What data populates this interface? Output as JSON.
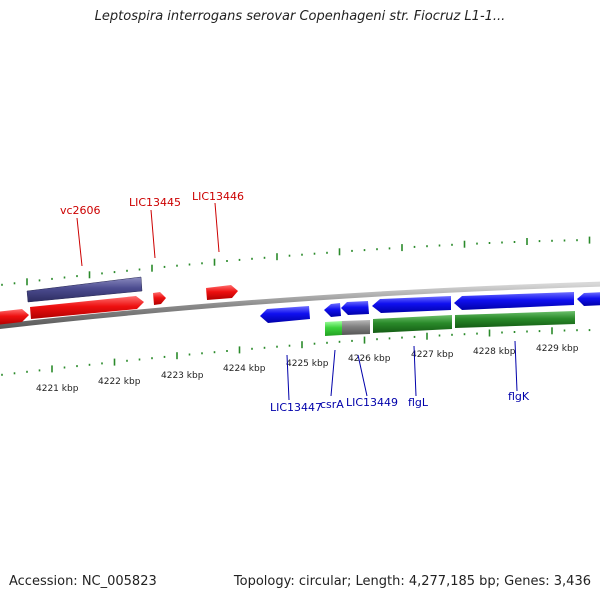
{
  "title": "Leptospira interrogans serovar Copenhageni str. Fiocruz L1-1...",
  "footer": {
    "accession": "Accession: NC_005823",
    "summary": "Topology: circular; Length: 4,277,185 bp; Genes: 3,436"
  },
  "colors": {
    "forward_cds": "#e00000",
    "reverse_cds": "#1010e0",
    "forward_other": "#4a4a8c",
    "reverse_other": "#2a8a2a",
    "backbone": "#808080",
    "ticks": "#2a8a2a",
    "forward_label": "#cc0000",
    "reverse_label": "#0000aa"
  },
  "position_labels": [
    "4221 kbp",
    "4222 kbp",
    "4223 kbp",
    "4224 kbp",
    "4225 kbp",
    "4226 kbp",
    "4227 kbp",
    "4228 kbp",
    "4229 kbp"
  ],
  "forward_gene_labels": [
    "vc2606",
    "LIC13445",
    "LIC13446"
  ],
  "reverse_gene_labels": [
    "LIC13447",
    "csrA",
    "LIC13449",
    "flgL",
    "flgK"
  ]
}
